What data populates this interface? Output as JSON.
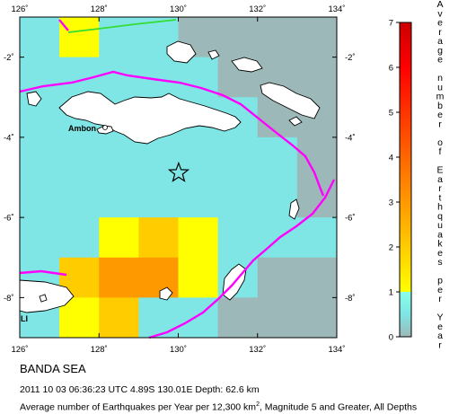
{
  "map": {
    "lon_range": [
      126,
      134
    ],
    "lat_range": [
      -9,
      -1
    ],
    "lon_ticks": [
      126,
      128,
      130,
      132,
      134
    ],
    "lat_ticks": [
      -2,
      -4,
      -6,
      -8
    ],
    "lon_tick_labels": [
      "126˚",
      "128˚",
      "130˚",
      "132˚",
      "134˚"
    ],
    "lat_tick_labels": [
      "-2˚",
      "-4˚",
      "-6˚",
      "-8˚"
    ],
    "place_labels": [
      {
        "text": "Ambon",
        "lon": 128.2,
        "lat": -3.7
      },
      {
        "text": "LI",
        "lon": 126.1,
        "lat": -8.65
      }
    ],
    "epicenter": {
      "lon": 130.01,
      "lat": -4.89
    },
    "grid_cell_degrees": 1,
    "rate_grid": [
      [
        0.5,
        1.5,
        0.5,
        0.5,
        0.2,
        0.2,
        0.0,
        0.2
      ],
      [
        0.5,
        0.5,
        0.5,
        0.5,
        0.5,
        0.2,
        0.0,
        0.2
      ],
      [
        0.5,
        0.5,
        0.5,
        0.5,
        0.5,
        0.5,
        0.2,
        0.2
      ],
      [
        0.5,
        0.5,
        0.5,
        0.5,
        0.5,
        0.5,
        0.5,
        0.2
      ],
      [
        0.5,
        0.5,
        0.5,
        0.5,
        0.5,
        0.5,
        0.5,
        0.2
      ],
      [
        0.5,
        0.5,
        1.5,
        2.6,
        1.5,
        0.5,
        0.5,
        0.5
      ],
      [
        0.5,
        2.2,
        3.0,
        3.0,
        1.5,
        0.5,
        0.3,
        0.3
      ],
      [
        0.5,
        1.6,
        2.0,
        0.5,
        0.5,
        0.3,
        0.2,
        0.2
      ]
    ]
  },
  "colorbar": {
    "label": "Average number of Earthquakes per Year",
    "min": 0,
    "max": 7,
    "tick_values": [
      0,
      1,
      2,
      3,
      4,
      5,
      6,
      7
    ],
    "tick_labels": [
      "0",
      "1",
      "2",
      "3",
      "4",
      "5",
      "6",
      "7"
    ],
    "stops": [
      {
        "v": 0,
        "color": "#9db8b8"
      },
      {
        "v": 0.5,
        "color": "#7fe5e5"
      },
      {
        "v": 1,
        "color": "#88ffea"
      },
      {
        "v": 1.0001,
        "color": "#ffff00"
      },
      {
        "v": 2,
        "color": "#ffcc00"
      },
      {
        "v": 3,
        "color": "#ff9900"
      },
      {
        "v": 4,
        "color": "#ff6600"
      },
      {
        "v": 5,
        "color": "#ff3300"
      },
      {
        "v": 6,
        "color": "#ff0000"
      },
      {
        "v": 7,
        "color": "#cc0000"
      }
    ]
  },
  "caption": {
    "title": "BANDA SEA",
    "event_line": "2011 10 03 06:36:23 UTC 4.89S 130.01E Depth: 62.6 km",
    "footer_pre": "Average number of Earthquakes per Year per 12,300 km",
    "footer_sup": "2",
    "footer_post": ", Magnitude 5 and Greater, All Depths"
  },
  "colors": {
    "plate_boundary": "#ff00ff",
    "trench_green": "#33dd33",
    "coast_land": "#ffffff",
    "coast_line": "#000000",
    "epicenter_star": "#000000"
  }
}
